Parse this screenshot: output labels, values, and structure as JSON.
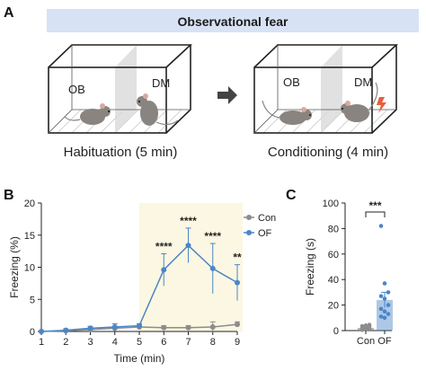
{
  "panel_a": {
    "panel_label": "A",
    "banner_title": "Observational fear",
    "box1": {
      "left_label": "OB",
      "right_label": "DM",
      "caption": "Habituation (5 min)"
    },
    "box2": {
      "left_label": "OB",
      "right_label": "DM",
      "caption": "Conditioning (4 min)"
    }
  },
  "panel_b": {
    "panel_label": "B"
  },
  "panel_c": {
    "panel_label": "C"
  },
  "colors": {
    "con": "#8c8c8c",
    "of": "#4a86c8",
    "banner": "#d7e3f4",
    "highlight": "#fbf7e2",
    "bolt": "#e85d3a"
  },
  "chart_data": [
    {
      "type": "line",
      "xlabel": "Time (min)",
      "ylabel": "Freezing (%)",
      "xlim": [
        1,
        9
      ],
      "ylim": [
        0,
        20
      ],
      "xticks": [
        1,
        2,
        3,
        4,
        5,
        6,
        7,
        8,
        9
      ],
      "yticks": [
        0,
        5,
        10,
        15,
        20
      ],
      "highlight_range": [
        5,
        9
      ],
      "legend_position": "right",
      "x": [
        1,
        2,
        3,
        4,
        5,
        6,
        7,
        8,
        9
      ],
      "series": [
        {
          "name": "Con",
          "values": [
            0,
            0.1,
            0.3,
            0.5,
            0.7,
            0.6,
            0.6,
            0.7,
            1.1
          ],
          "errors": [
            0,
            0.1,
            0.2,
            0.3,
            0.2,
            0.3,
            0.3,
            0.8,
            0.4
          ]
        },
        {
          "name": "OF",
          "values": [
            0,
            0.2,
            0.5,
            0.7,
            0.9,
            9.6,
            13.4,
            9.8,
            7.6
          ],
          "errors": [
            0,
            0.2,
            0.3,
            0.5,
            0.3,
            2.5,
            2.7,
            3.9,
            2.8
          ]
        }
      ],
      "significance": [
        {
          "x": 6,
          "label": "****"
        },
        {
          "x": 7,
          "label": "****"
        },
        {
          "x": 8,
          "label": "****"
        },
        {
          "x": 9,
          "label": "**"
        }
      ]
    },
    {
      "type": "bar",
      "ylabel": "Freezing (s)",
      "ylim": [
        0,
        100
      ],
      "yticks": [
        0,
        20,
        40,
        60,
        80,
        100
      ],
      "categories": [
        "Con",
        "OF"
      ],
      "values": [
        2,
        24
      ],
      "errors": [
        0.6,
        6
      ],
      "points": [
        [
          0.5,
          1,
          1.5,
          2,
          2.5,
          3,
          3.5,
          4,
          4.5
        ],
        [
          82,
          37,
          30,
          27,
          25,
          20,
          17,
          15,
          13,
          11,
          10
        ]
      ],
      "significance": "***"
    }
  ]
}
